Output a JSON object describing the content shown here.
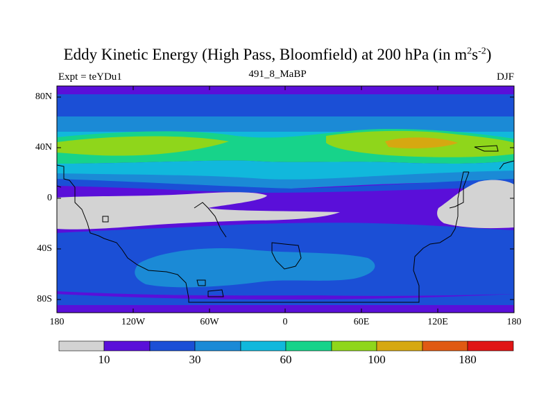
{
  "title": {
    "main": "Eddy Kinetic Energy (High Pass, Bloomfield) at 200 hPa (in m",
    "sup1": "2",
    "mid": "s",
    "sup2": "-2",
    "end": ")"
  },
  "left_label": "Expt = teYDu1",
  "center_label": "491_8_MaBP",
  "right_label": "DJF",
  "map": {
    "lon_range": [
      -180,
      180
    ],
    "lat_range": [
      -90,
      90
    ],
    "x_ticks": [
      "180",
      "120W",
      "60W",
      "0",
      "60E",
      "120E",
      "180"
    ],
    "y_ticks": [
      "80N",
      "40N",
      "0",
      "40S",
      "80S"
    ]
  },
  "colorbar": {
    "colors": [
      "#d3d3d3",
      "#5a0fd9",
      "#1b4fd6",
      "#1b8ad6",
      "#11b8dc",
      "#17d38a",
      "#8fd61b",
      "#d6a811",
      "#e05a13",
      "#e01515"
    ],
    "labels": [
      "10",
      "30",
      "60",
      "100",
      "180"
    ]
  }
}
